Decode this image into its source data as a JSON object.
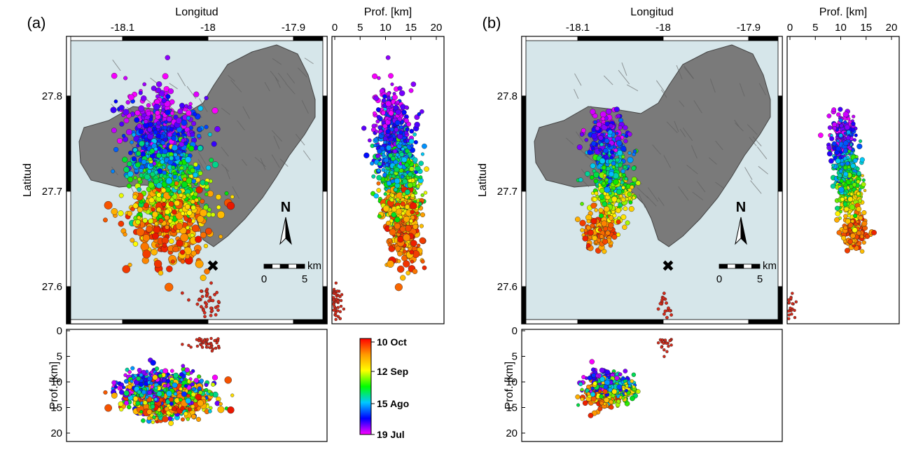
{
  "colors": {
    "sea": "#d6e6ea",
    "island_fill": "#7a7a7a",
    "island_edge": "#444444",
    "frame": "#000000"
  },
  "panels": [
    {
      "letter": "(a)",
      "top_label": "Longitud",
      "side_label": "Latitud",
      "depth_top_label": "Prof. [km]",
      "depth_side_label": "Prof. [km]",
      "lon_ticks": [
        "-18.1",
        "-18",
        "-17.9"
      ],
      "lat_ticks": [
        "27.8",
        "27.7",
        "27.6"
      ],
      "depth_ticks_h": [
        "0",
        "5",
        "10",
        "15",
        "20"
      ],
      "depth_ticks_v": [
        "0",
        "5",
        "10",
        "15",
        "20"
      ],
      "north_label": "N",
      "scale_unit": "km",
      "scale_ticks": [
        "0",
        "5"
      ],
      "cross_symbol": "✖"
    },
    {
      "letter": "(b)",
      "top_label": "Longitud",
      "side_label": "Latitud",
      "depth_top_label": "Prof. [km]",
      "depth_side_label": "Prof. [km]",
      "lon_ticks": [
        "-18.1",
        "-18",
        "-17.9"
      ],
      "lat_ticks": [
        "27.8",
        "27.7",
        "27.6"
      ],
      "depth_ticks_h": [
        "0",
        "5",
        "10",
        "15",
        "20"
      ],
      "depth_ticks_v": [
        "0",
        "5",
        "10",
        "15",
        "20"
      ],
      "north_label": "N",
      "scale_unit": "km",
      "scale_ticks": [
        "0",
        "5"
      ],
      "cross_symbol": "✖"
    }
  ],
  "colorbar": {
    "labels": [
      "10 Oct",
      "12 Sep",
      "15 Ago",
      "19 Jul"
    ],
    "colors": [
      "#ff0000",
      "#ff9900",
      "#ffff00",
      "#00ff00",
      "#00c8ff",
      "#0000ff",
      "#ff00ff"
    ]
  }
}
